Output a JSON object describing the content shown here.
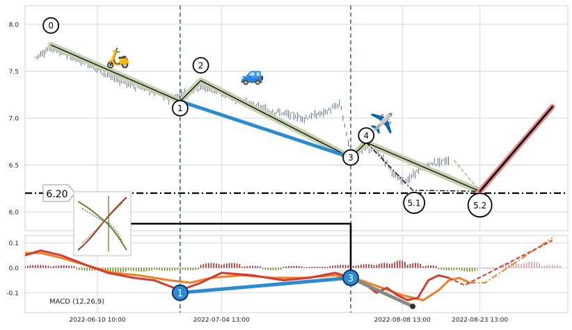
{
  "chart_data": [
    {
      "type": "candlestick",
      "title": "",
      "xlabel": "",
      "ylabel": "",
      "ylim": [
        5.8,
        8.2
      ],
      "yticks": [
        6.0,
        6.5,
        7.0,
        7.5,
        8.0
      ],
      "x_range": [
        "2022-05-27",
        "2022-09-09"
      ],
      "xticks": [
        {
          "date": "2022-06-10",
          "label": "2022-06-10 10:00"
        },
        {
          "date": "2022-07-04",
          "label": "2022-07-04 13:00"
        },
        {
          "date": "2022-08-08",
          "label": "2022-08-08 13:00"
        },
        {
          "date": "2022-08-23",
          "label": "2022-08-23 13:00"
        }
      ],
      "grid": true,
      "price_path": [
        [
          "2022-05-29",
          7.65
        ],
        [
          "2022-06-01",
          7.75
        ],
        [
          "2022-06-04",
          7.68
        ],
        [
          "2022-06-08",
          7.58
        ],
        [
          "2022-06-12",
          7.46
        ],
        [
          "2022-06-16",
          7.36
        ],
        [
          "2022-06-20",
          7.3
        ],
        [
          "2022-06-24",
          7.2
        ],
        [
          "2022-06-27",
          7.28
        ],
        [
          "2022-06-30",
          7.33
        ],
        [
          "2022-07-04",
          7.27
        ],
        [
          "2022-07-08",
          7.18
        ],
        [
          "2022-07-12",
          7.1
        ],
        [
          "2022-07-16",
          7.05
        ],
        [
          "2022-07-20",
          7.0
        ],
        [
          "2022-07-24",
          7.06
        ],
        [
          "2022-07-27",
          7.15
        ],
        [
          "2022-07-29",
          6.6
        ],
        [
          "2022-08-01",
          6.68
        ],
        [
          "2022-08-03",
          6.65
        ],
        [
          "2022-08-05",
          6.52
        ],
        [
          "2022-08-07",
          6.35
        ],
        [
          "2022-08-09",
          6.33
        ],
        [
          "2022-08-11",
          6.45
        ],
        [
          "2022-08-14",
          6.52
        ],
        [
          "2022-08-17",
          6.55
        ]
      ],
      "wave_points": [
        {
          "label": "0",
          "date": "2022-06-01",
          "value": 7.78
        },
        {
          "label": "1",
          "date": "2022-06-26",
          "value": 7.18
        },
        {
          "label": "2",
          "date": "2022-06-30",
          "value": 7.4
        },
        {
          "label": "3",
          "date": "2022-07-29",
          "value": 6.58
        },
        {
          "label": "4",
          "date": "2022-08-01",
          "value": 6.74
        },
        {
          "label": "5.1",
          "date": "2022-08-10",
          "value": 6.23
        },
        {
          "label": "5.2",
          "date": "2022-08-23",
          "value": 6.22
        }
      ],
      "blue_segment": [
        [
          "2022-06-26",
          7.18
        ],
        [
          "2022-07-29",
          6.58
        ]
      ],
      "forecast_line": [
        [
          "2022-08-23",
          6.22
        ],
        [
          "2022-09-06",
          7.12
        ]
      ],
      "horizontal_level": {
        "value": 6.2,
        "label": "6.20"
      },
      "vertical_markers": [
        "2022-06-26",
        "2022-07-29"
      ],
      "icons": [
        {
          "name": "scooter-icon",
          "glyph": "🛵",
          "date": "2022-06-14",
          "value": 7.65
        },
        {
          "name": "car-icon",
          "glyph": "🚙",
          "date": "2022-07-10",
          "value": 7.47
        },
        {
          "name": "airplane-icon",
          "glyph": "✈️",
          "date": "2022-08-04",
          "value": 6.95
        }
      ]
    },
    {
      "type": "macd",
      "title": "",
      "label": "MACD (12,26,9)",
      "ylim": [
        -0.18,
        0.13
      ],
      "yticks": [
        -0.1,
        0.0,
        0.1
      ],
      "macd": [
        [
          "2022-05-27",
          0.05
        ],
        [
          "2022-05-30",
          0.07
        ],
        [
          "2022-06-03",
          0.05
        ],
        [
          "2022-06-08",
          0.01
        ],
        [
          "2022-06-12",
          -0.02
        ],
        [
          "2022-06-17",
          -0.04
        ],
        [
          "2022-06-21",
          -0.05
        ],
        [
          "2022-06-26",
          -0.09
        ],
        [
          "2022-06-30",
          -0.06
        ],
        [
          "2022-07-04",
          -0.02
        ],
        [
          "2022-07-10",
          -0.03
        ],
        [
          "2022-07-16",
          -0.05
        ],
        [
          "2022-07-21",
          -0.04
        ],
        [
          "2022-07-26",
          -0.02
        ],
        [
          "2022-07-29",
          -0.04
        ],
        [
          "2022-08-01",
          -0.07
        ],
        [
          "2022-08-03",
          -0.1
        ],
        [
          "2022-08-05",
          -0.08
        ],
        [
          "2022-08-07",
          -0.11
        ],
        [
          "2022-08-09",
          -0.13
        ],
        [
          "2022-08-11",
          -0.12
        ],
        [
          "2022-08-13",
          -0.05
        ],
        [
          "2022-08-15",
          -0.03
        ],
        [
          "2022-08-17",
          -0.04
        ]
      ],
      "signal": [
        [
          "2022-05-27",
          0.06
        ],
        [
          "2022-05-30",
          0.06
        ],
        [
          "2022-06-03",
          0.04
        ],
        [
          "2022-06-08",
          0.01
        ],
        [
          "2022-06-13",
          -0.02
        ],
        [
          "2022-06-18",
          -0.03
        ],
        [
          "2022-06-24",
          -0.05
        ],
        [
          "2022-06-28",
          -0.06
        ],
        [
          "2022-07-02",
          -0.04
        ],
        [
          "2022-07-08",
          -0.03
        ],
        [
          "2022-07-14",
          -0.04
        ],
        [
          "2022-07-20",
          -0.04
        ],
        [
          "2022-07-26",
          -0.03
        ],
        [
          "2022-07-31",
          -0.05
        ],
        [
          "2022-08-04",
          -0.08
        ],
        [
          "2022-08-08",
          -0.11
        ],
        [
          "2022-08-12",
          -0.13
        ],
        [
          "2022-08-15",
          -0.09
        ],
        [
          "2022-08-17",
          -0.05
        ],
        [
          "2022-08-19",
          -0.04
        ],
        [
          "2022-08-21",
          -0.06
        ]
      ],
      "macd_forecast": [
        [
          "2022-08-17",
          -0.04
        ],
        [
          "2022-08-20",
          -0.07
        ],
        [
          "2022-09-06",
          0.11
        ]
      ],
      "signal_forecast": [
        [
          "2022-08-21",
          -0.06
        ],
        [
          "2022-08-24",
          -0.06
        ],
        [
          "2022-09-06",
          0.12
        ]
      ],
      "blue_segment": [
        [
          "2022-06-26",
          -0.1
        ],
        [
          "2022-07-29",
          -0.04
        ]
      ],
      "gray_segment": [
        [
          "2022-07-29",
          -0.04
        ],
        [
          "2022-08-10",
          -0.155
        ]
      ],
      "wave_points": [
        {
          "label": "1",
          "date": "2022-06-26",
          "value": -0.1
        },
        {
          "label": "3",
          "date": "2022-07-29",
          "value": -0.04
        }
      ],
      "histogram": [
        [
          "2022-05-27",
          0.012
        ],
        [
          "2022-06-01",
          0.01
        ],
        [
          "2022-06-06",
          -0.012
        ],
        [
          "2022-06-11",
          -0.02
        ],
        [
          "2022-06-16",
          -0.015
        ],
        [
          "2022-06-21",
          -0.012
        ],
        [
          "2022-06-26",
          -0.01
        ],
        [
          "2022-06-30",
          0.02
        ],
        [
          "2022-07-04",
          0.02
        ],
        [
          "2022-07-08",
          0.008
        ],
        [
          "2022-07-12",
          -0.01
        ],
        [
          "2022-07-16",
          0.008
        ],
        [
          "2022-07-20",
          0.005
        ],
        [
          "2022-07-25",
          0.012
        ],
        [
          "2022-07-30",
          0.015
        ],
        [
          "2022-08-03",
          0.02
        ],
        [
          "2022-08-06",
          0.03
        ],
        [
          "2022-08-09",
          0.02
        ],
        [
          "2022-08-12",
          0.01
        ],
        [
          "2022-08-15",
          -0.01
        ],
        [
          "2022-08-19",
          -0.015
        ],
        [
          "2022-08-23",
          -0.005
        ],
        [
          "2022-08-27",
          0.02
        ],
        [
          "2022-08-31",
          0.025
        ],
        [
          "2022-09-04",
          0.012
        ]
      ]
    }
  ],
  "colors": {
    "candle": "#3a4a68",
    "wave_band": "#c5d1ad",
    "wave_line": "#000000",
    "blue_line": "#2a8bd2",
    "forecast_line": "#000000",
    "forecast_halo": "#e98585",
    "macd": "#d63a2f",
    "signal": "#f07e22",
    "hist_positive": "#9b2222",
    "hist_negative": "#6f8c1c",
    "hist_forecast": "#d79b9b",
    "vline": "#4d6880",
    "grid": "#d6d6d6",
    "axes_frame": "#cfcfcf"
  }
}
